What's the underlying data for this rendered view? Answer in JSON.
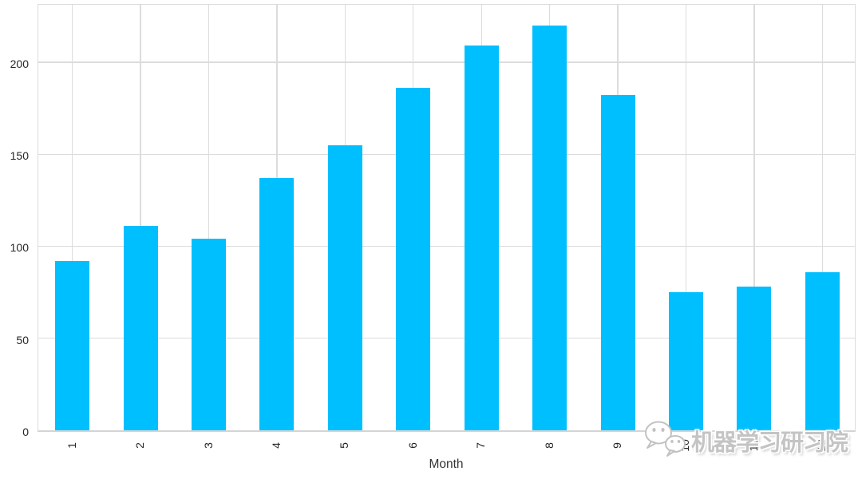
{
  "figure": {
    "background": "#ffffff",
    "watermark": {
      "text": "机器学习研习院",
      "icon": "wechat-icon",
      "text_color": "#c4c4c4"
    }
  },
  "chart_data": {
    "type": "bar",
    "title": "",
    "xlabel": "Month",
    "ylabel": "",
    "categories": [
      "1",
      "2",
      "3",
      "4",
      "5",
      "6",
      "7",
      "8",
      "9",
      "10",
      "11",
      "12"
    ],
    "values": [
      92,
      111,
      104,
      137,
      155,
      186,
      209,
      220,
      182,
      75,
      78,
      86
    ],
    "bar_color": "#00bfff",
    "grid": true,
    "grid_color": "#dcdcdc",
    "axis_text_color": "#262626",
    "x_tick_rotation": 90,
    "y_ticks": [
      0,
      50,
      100,
      150,
      200
    ],
    "ylim": [
      0,
      232.5
    ],
    "legend": "none"
  }
}
